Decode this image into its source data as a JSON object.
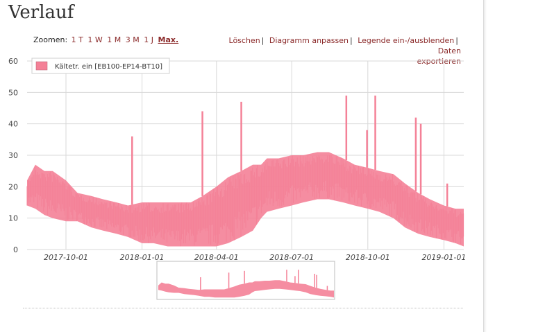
{
  "page": {
    "title": "Verlauf"
  },
  "zoom": {
    "label": "Zoomen:",
    "options": [
      "1 T",
      "1 W",
      "1 M",
      "3 M",
      "1 J",
      "Max."
    ],
    "active": "Max."
  },
  "actions": {
    "delete": "Löschen",
    "customize": "Diagramm anpassen",
    "toggle_legend": "Legende ein-/ausblenden",
    "export_line1": "Daten",
    "export_line2": "exportieren",
    "separator": "|"
  },
  "colors": {
    "series": "#f48197",
    "grid": "#d8d8d8",
    "link": "#8b2a2a"
  },
  "chart_data": {
    "type": "area",
    "title": "",
    "xlabel": "",
    "ylabel": "",
    "ylim": [
      0,
      60
    ],
    "y_ticks": [
      0,
      10,
      20,
      30,
      40,
      50,
      60
    ],
    "x_range": [
      "2017-08-15",
      "2019-01-25"
    ],
    "x_ticks": [
      "2017-10-01",
      "2018-01-01",
      "2018-04-01",
      "2018-07-01",
      "2018-10-01",
      "2019-01-01"
    ],
    "grid": true,
    "legend_position": "top-left",
    "series": [
      {
        "name": "Kältetr. ein [EB100-EP14-BT10]",
        "color": "#f48197",
        "x": [
          "2017-08-15",
          "2017-08-25",
          "2017-09-05",
          "2017-09-15",
          "2017-10-01",
          "2017-10-15",
          "2017-11-01",
          "2017-11-15",
          "2017-12-01",
          "2017-12-15",
          "2018-01-01",
          "2018-01-15",
          "2018-02-01",
          "2018-02-15",
          "2018-03-01",
          "2018-03-15",
          "2018-04-01",
          "2018-04-15",
          "2018-05-01",
          "2018-05-15",
          "2018-05-25",
          "2018-06-01",
          "2018-06-15",
          "2018-07-01",
          "2018-07-15",
          "2018-08-01",
          "2018-08-15",
          "2018-09-01",
          "2018-09-15",
          "2018-10-01",
          "2018-10-15",
          "2018-11-01",
          "2018-11-15",
          "2018-12-01",
          "2018-12-15",
          "2019-01-01",
          "2019-01-15",
          "2019-01-25"
        ],
        "min": [
          14,
          13,
          11,
          10,
          9,
          9,
          7,
          6,
          5,
          4,
          2,
          2,
          1,
          1,
          1,
          1,
          1,
          2,
          4,
          6,
          10,
          12,
          13,
          14,
          15,
          16,
          16,
          15,
          14,
          13,
          12,
          10,
          7,
          5,
          4,
          3,
          2,
          1
        ],
        "max": [
          22,
          27,
          25,
          25,
          22,
          18,
          17,
          16,
          15,
          14,
          15,
          15,
          15,
          15,
          15,
          17,
          20,
          23,
          25,
          27,
          27,
          29,
          29,
          30,
          30,
          31,
          31,
          29,
          27,
          26,
          25,
          24,
          21,
          18,
          16,
          14,
          13,
          13
        ]
      }
    ],
    "spikes": [
      {
        "x": "2017-12-20",
        "y": 36
      },
      {
        "x": "2018-03-15",
        "y": 44
      },
      {
        "x": "2018-05-01",
        "y": 47
      },
      {
        "x": "2018-09-05",
        "y": 49
      },
      {
        "x": "2018-09-30",
        "y": 38
      },
      {
        "x": "2018-10-10",
        "y": 49
      },
      {
        "x": "2018-11-28",
        "y": 42
      },
      {
        "x": "2018-12-04",
        "y": 40
      },
      {
        "x": "2019-01-05",
        "y": 21
      }
    ]
  }
}
